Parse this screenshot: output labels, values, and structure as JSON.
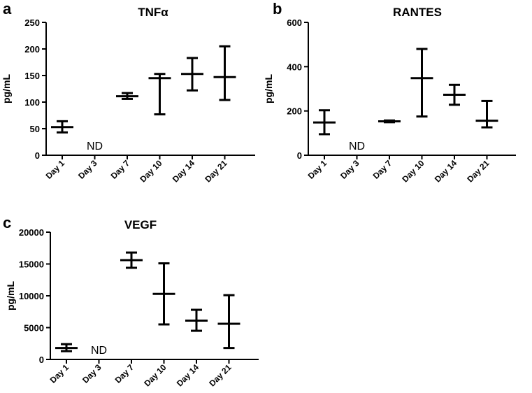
{
  "chart_data": [
    {
      "type": "errorbar",
      "panel": "a",
      "title": "TNFα",
      "xlabel": "",
      "ylabel": "pg/mL",
      "ylim": [
        0,
        250
      ],
      "yticks": [
        0,
        50,
        100,
        150,
        200,
        250
      ],
      "categories": [
        "Day 1",
        "Day 3",
        "Day 7",
        "Day 10",
        "Day 14",
        "Day 21"
      ],
      "series": [
        {
          "name": "TNFα",
          "values": [
            53,
            null,
            111,
            145,
            153,
            147
          ],
          "err_lower": [
            43,
            null,
            106,
            77,
            122,
            104
          ],
          "err_upper": [
            64,
            null,
            117,
            153,
            183,
            205
          ]
        }
      ],
      "annotations": [
        {
          "category": "Day 3",
          "text": "ND"
        }
      ]
    },
    {
      "type": "errorbar",
      "panel": "b",
      "title": "RANTES",
      "xlabel": "",
      "ylabel": "pg/mL",
      "ylim": [
        0,
        600
      ],
      "yticks": [
        0,
        200,
        400,
        600
      ],
      "categories": [
        "Day 1",
        "Day 3",
        "Day 7",
        "Day 10",
        "Day 14",
        "Day 21"
      ],
      "series": [
        {
          "name": "RANTES",
          "values": [
            148,
            null,
            153,
            348,
            273,
            156
          ],
          "err_lower": [
            95,
            null,
            149,
            175,
            228,
            126
          ],
          "err_upper": [
            203,
            null,
            157,
            480,
            318,
            245
          ]
        }
      ],
      "annotations": [
        {
          "category": "Day 3",
          "text": "ND"
        }
      ]
    },
    {
      "type": "errorbar",
      "panel": "c",
      "title": "VEGF",
      "xlabel": "",
      "ylabel": "pg/mL",
      "ylim": [
        0,
        20000
      ],
      "yticks": [
        0,
        5000,
        10000,
        15000,
        20000
      ],
      "categories": [
        "Day 1",
        "Day 3",
        "Day 7",
        "Day 10",
        "Day 14",
        "Day 21"
      ],
      "series": [
        {
          "name": "VEGF",
          "values": [
            1800,
            null,
            15600,
            10300,
            6100,
            5600
          ],
          "err_lower": [
            1300,
            null,
            14400,
            5500,
            4500,
            1800
          ],
          "err_upper": [
            2400,
            null,
            16800,
            15100,
            7800,
            10100
          ]
        }
      ],
      "annotations": [
        {
          "category": "Day 3",
          "text": "ND"
        }
      ]
    }
  ]
}
